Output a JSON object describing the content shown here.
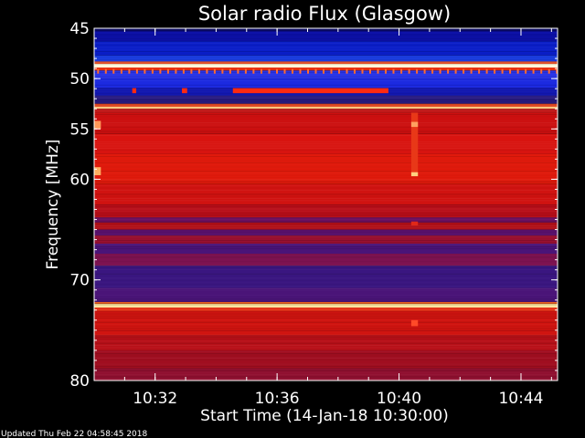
{
  "chart_data": {
    "type": "heatmap",
    "title": "Solar radio Flux (Glasgow)",
    "xlabel": "Start Time (14-Jan-18 10:30:00)",
    "ylabel": "Frequency [MHz]",
    "x_unit": "minutes after 10:30:00",
    "xlim": [
      0,
      15.2
    ],
    "ylim": [
      45,
      80
    ],
    "x_ticks": [
      {
        "minute": 2,
        "label": "10:32"
      },
      {
        "minute": 6,
        "label": "10:36"
      },
      {
        "minute": 10,
        "label": "10:40"
      },
      {
        "minute": 14,
        "label": "10:44"
      }
    ],
    "y_ticks": [
      {
        "value": 45,
        "label": "45"
      },
      {
        "value": 50,
        "label": "50"
      },
      {
        "value": 55,
        "label": "55"
      },
      {
        "value": 60,
        "label": "60"
      },
      {
        "value": 70,
        "label": "70"
      },
      {
        "value": 80,
        "label": "80"
      }
    ],
    "frequency_bands": [
      {
        "from": 45,
        "to": 45.3,
        "color": "#0a0a60"
      },
      {
        "from": 45.3,
        "to": 46.3,
        "color": "#0c10a8"
      },
      {
        "from": 46.3,
        "to": 47.7,
        "color": "#0a1ec8"
      },
      {
        "from": 47.7,
        "to": 48.3,
        "color": "#1c40e8"
      },
      {
        "from": 48.3,
        "to": 48.55,
        "color": "#e05028"
      },
      {
        "from": 48.55,
        "to": 48.9,
        "color": "#fff8d8"
      },
      {
        "from": 48.9,
        "to": 49.2,
        "color": "#e83010"
      },
      {
        "from": 49.2,
        "to": 50.0,
        "color": "#2a36e8"
      },
      {
        "from": 50.0,
        "to": 50.9,
        "color": "#1a28e0"
      },
      {
        "from": 50.9,
        "to": 51.7,
        "color": "#1218b0"
      },
      {
        "from": 51.7,
        "to": 52.5,
        "color": "#281a80"
      },
      {
        "from": 52.5,
        "to": 52.8,
        "color": "#e04820"
      },
      {
        "from": 52.8,
        "to": 53.0,
        "color": "#ffc880"
      },
      {
        "from": 53.0,
        "to": 53.4,
        "color": "#c01818"
      },
      {
        "from": 53.4,
        "to": 55.5,
        "color": "#cc1010"
      },
      {
        "from": 55.5,
        "to": 57.5,
        "color": "#d81410"
      },
      {
        "from": 57.5,
        "to": 60.5,
        "color": "#e01a0c"
      },
      {
        "from": 60.5,
        "to": 62.5,
        "color": "#d01210"
      },
      {
        "from": 62.5,
        "to": 63.8,
        "color": "#b80e18"
      },
      {
        "from": 63.8,
        "to": 64.3,
        "color": "#6a1060"
      },
      {
        "from": 64.3,
        "to": 65.0,
        "color": "#b01018"
      },
      {
        "from": 65.0,
        "to": 65.6,
        "color": "#58106a"
      },
      {
        "from": 65.6,
        "to": 66.4,
        "color": "#9a1030"
      },
      {
        "from": 66.4,
        "to": 67.4,
        "color": "#4a1478"
      },
      {
        "from": 67.4,
        "to": 68.6,
        "color": "#7c1250"
      },
      {
        "from": 68.6,
        "to": 70.8,
        "color": "#3a1680"
      },
      {
        "from": 70.8,
        "to": 72.2,
        "color": "#4a1478"
      },
      {
        "from": 72.2,
        "to": 72.4,
        "color": "#e86020"
      },
      {
        "from": 72.4,
        "to": 72.75,
        "color": "#ffe8a0"
      },
      {
        "from": 72.75,
        "to": 73.1,
        "color": "#e83418"
      },
      {
        "from": 73.1,
        "to": 75.5,
        "color": "#d01410"
      },
      {
        "from": 75.5,
        "to": 77.0,
        "color": "#b81018"
      },
      {
        "from": 77.0,
        "to": 78.8,
        "color": "#a00e20"
      },
      {
        "from": 78.8,
        "to": 80.0,
        "color": "#901030"
      }
    ],
    "features": [
      {
        "kind": "rect",
        "t0": 1.25,
        "t1": 1.38,
        "f0": 50.95,
        "f1": 51.45,
        "color": "#ff2a10"
      },
      {
        "kind": "rect",
        "t0": 2.88,
        "t1": 3.05,
        "f0": 50.95,
        "f1": 51.45,
        "color": "#ff2a10"
      },
      {
        "kind": "rect",
        "t0": 4.55,
        "t1": 9.65,
        "f0": 50.95,
        "f1": 51.45,
        "color": "#ff2a10"
      },
      {
        "kind": "rect",
        "t0": 10.4,
        "t1": 10.62,
        "f0": 53.4,
        "f1": 59.3,
        "color": "#e83818"
      },
      {
        "kind": "rect",
        "t0": 10.4,
        "t1": 10.62,
        "f0": 54.3,
        "f1": 54.8,
        "color": "#ffa060"
      },
      {
        "kind": "rect",
        "t0": 10.4,
        "t1": 10.62,
        "f0": 59.3,
        "f1": 59.7,
        "color": "#ffd080"
      },
      {
        "kind": "rect",
        "t0": 10.4,
        "t1": 10.62,
        "f0": 74.0,
        "f1": 74.6,
        "color": "#ff4a28"
      },
      {
        "kind": "rect",
        "t0": 10.4,
        "t1": 10.62,
        "f0": 64.2,
        "f1": 64.6,
        "color": "#e02818"
      },
      {
        "kind": "rect",
        "t0": 0.0,
        "t1": 0.22,
        "f0": 54.2,
        "f1": 55.0,
        "color": "#ff9858"
      },
      {
        "kind": "rect",
        "t0": 0.0,
        "t1": 0.22,
        "f0": 58.8,
        "f1": 59.6,
        "color": "#ffb060"
      }
    ],
    "background": "#000000"
  },
  "footer": {
    "updated": "Updated Thu Feb 22 04:58:45 2018"
  }
}
